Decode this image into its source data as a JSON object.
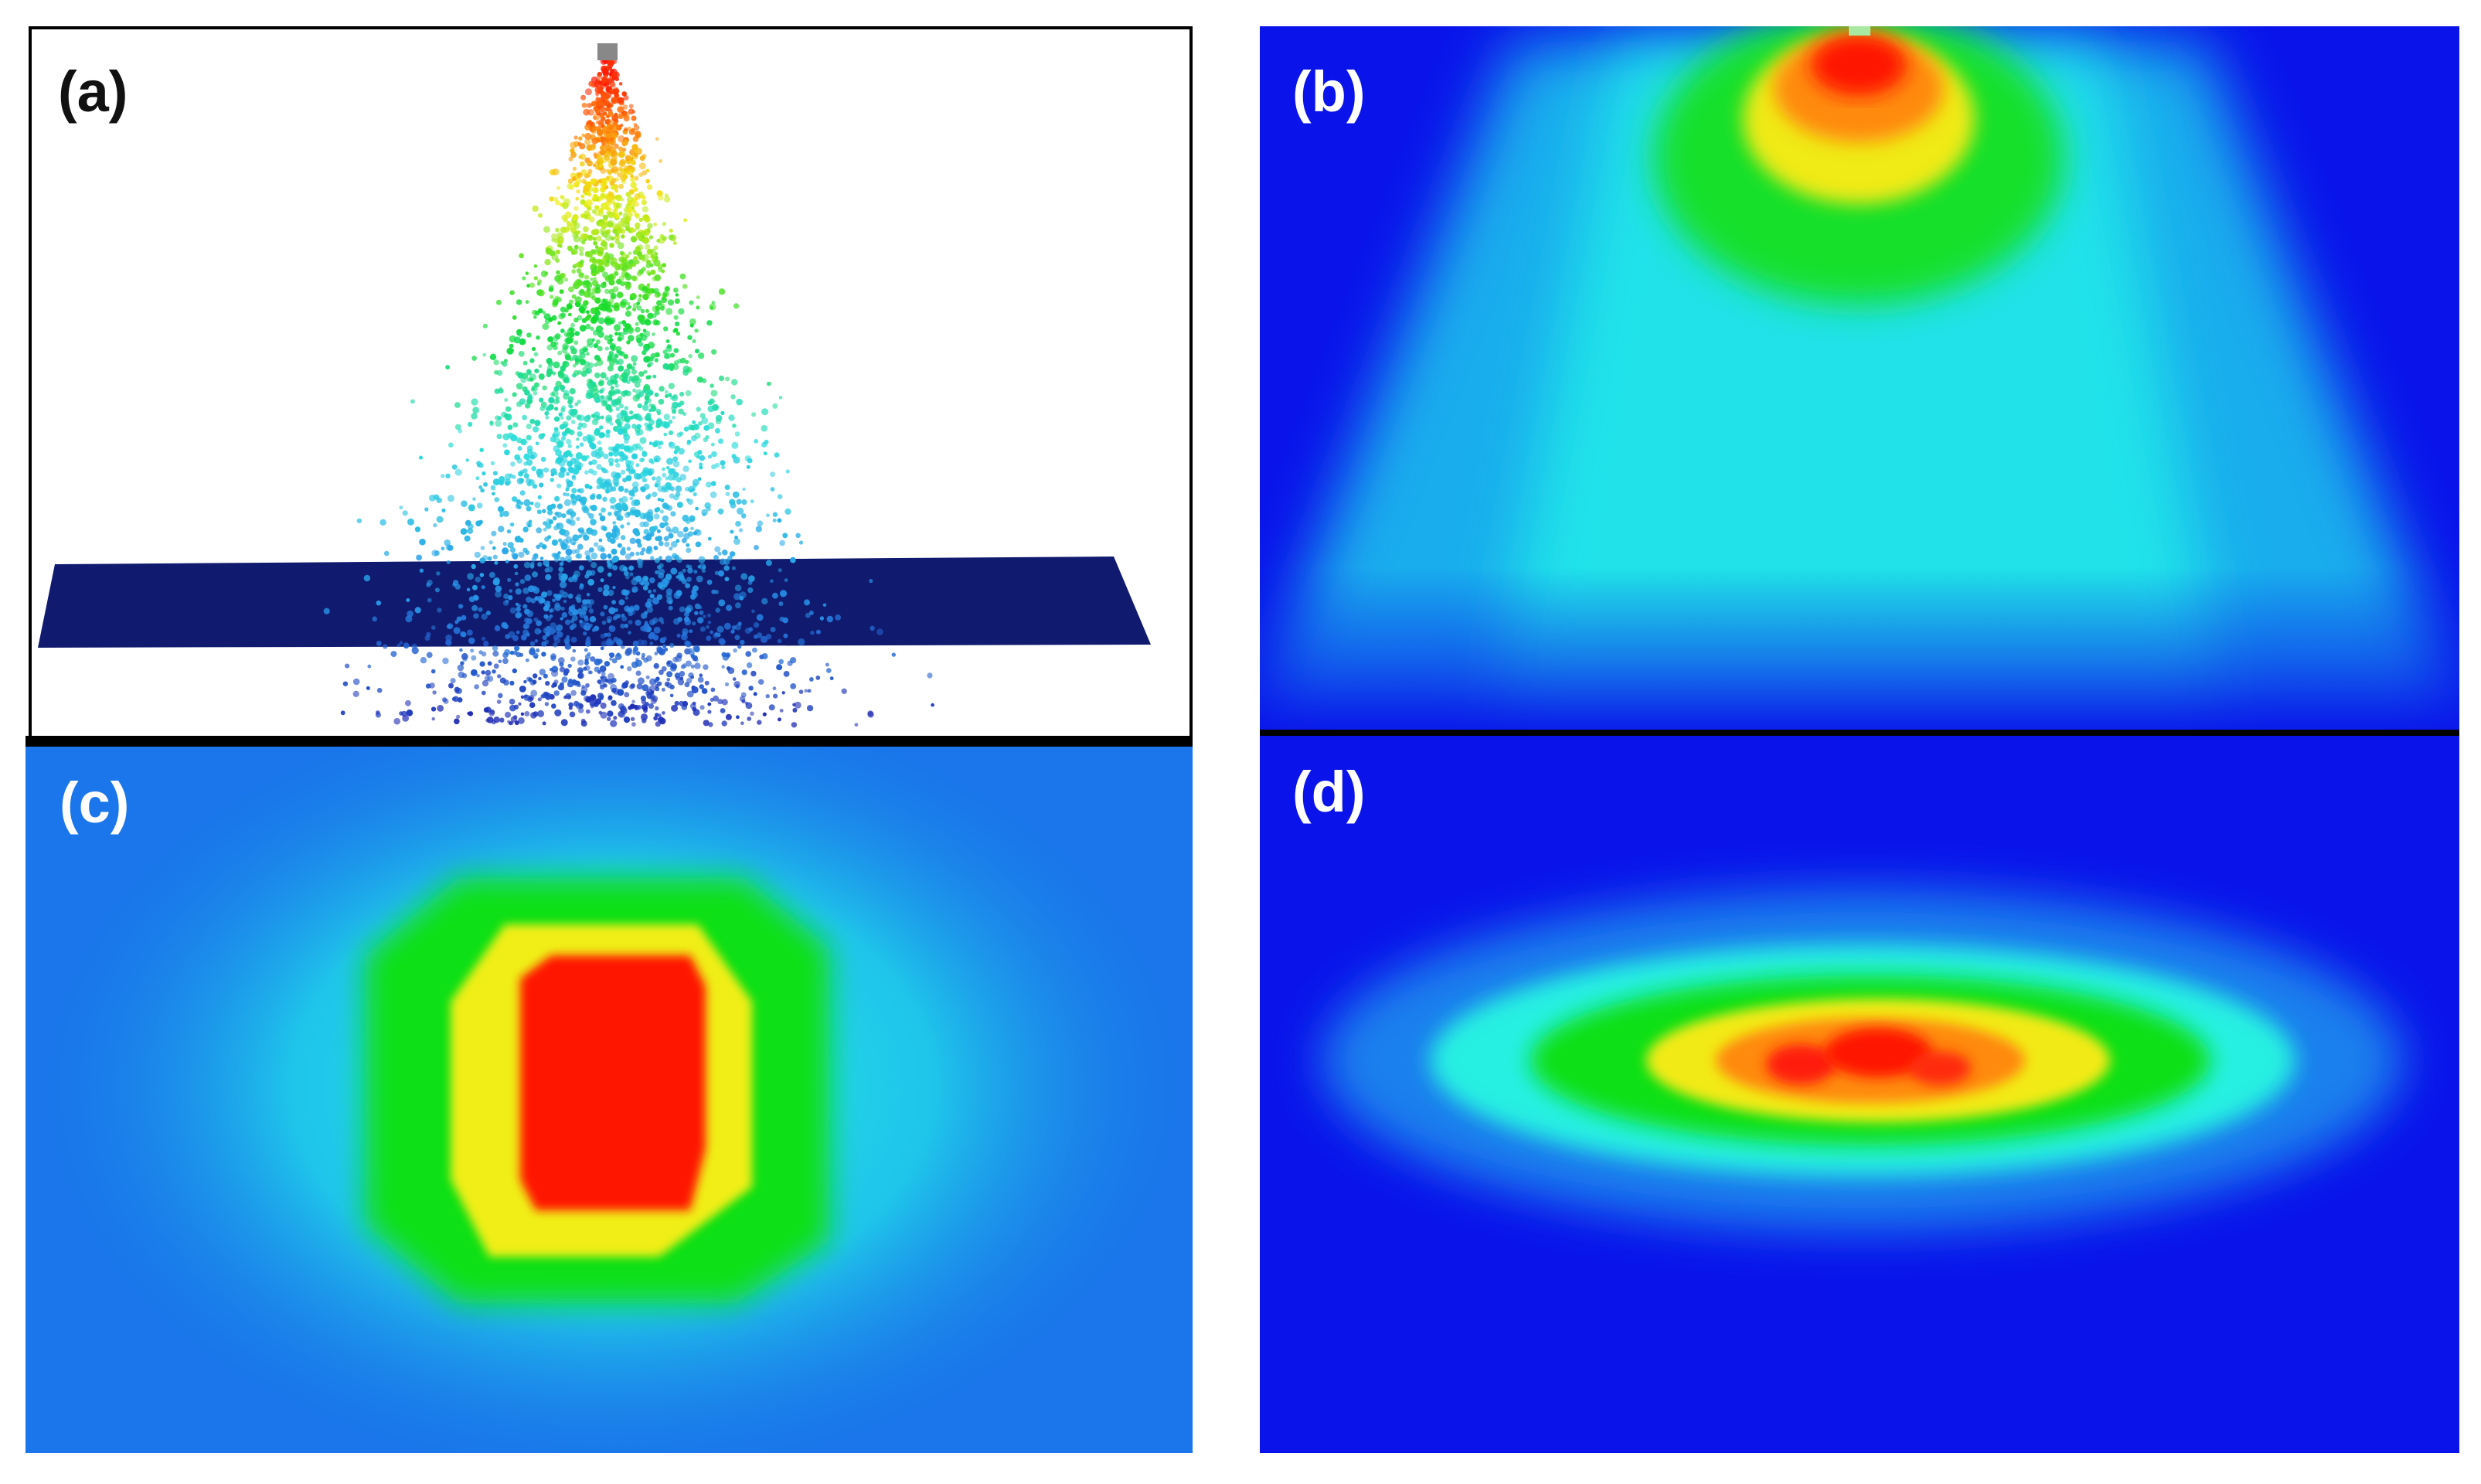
{
  "figure": {
    "panels": [
      {
        "id": "a",
        "label": "(a)"
      },
      {
        "id": "b",
        "label": "(b)"
      },
      {
        "id": "c",
        "label": "(c)"
      },
      {
        "id": "d",
        "label": "(d)"
      }
    ]
  },
  "colors": {
    "background_blue": "#0a14ea",
    "field_blue": "#1a76ea",
    "cyan": "#22e6e6",
    "green": "#12e020",
    "yellow": "#f2ee1a",
    "orange": "#ff8a10",
    "red": "#ff1406",
    "plate_navy": "#101a6e",
    "divider": "#000000"
  }
}
